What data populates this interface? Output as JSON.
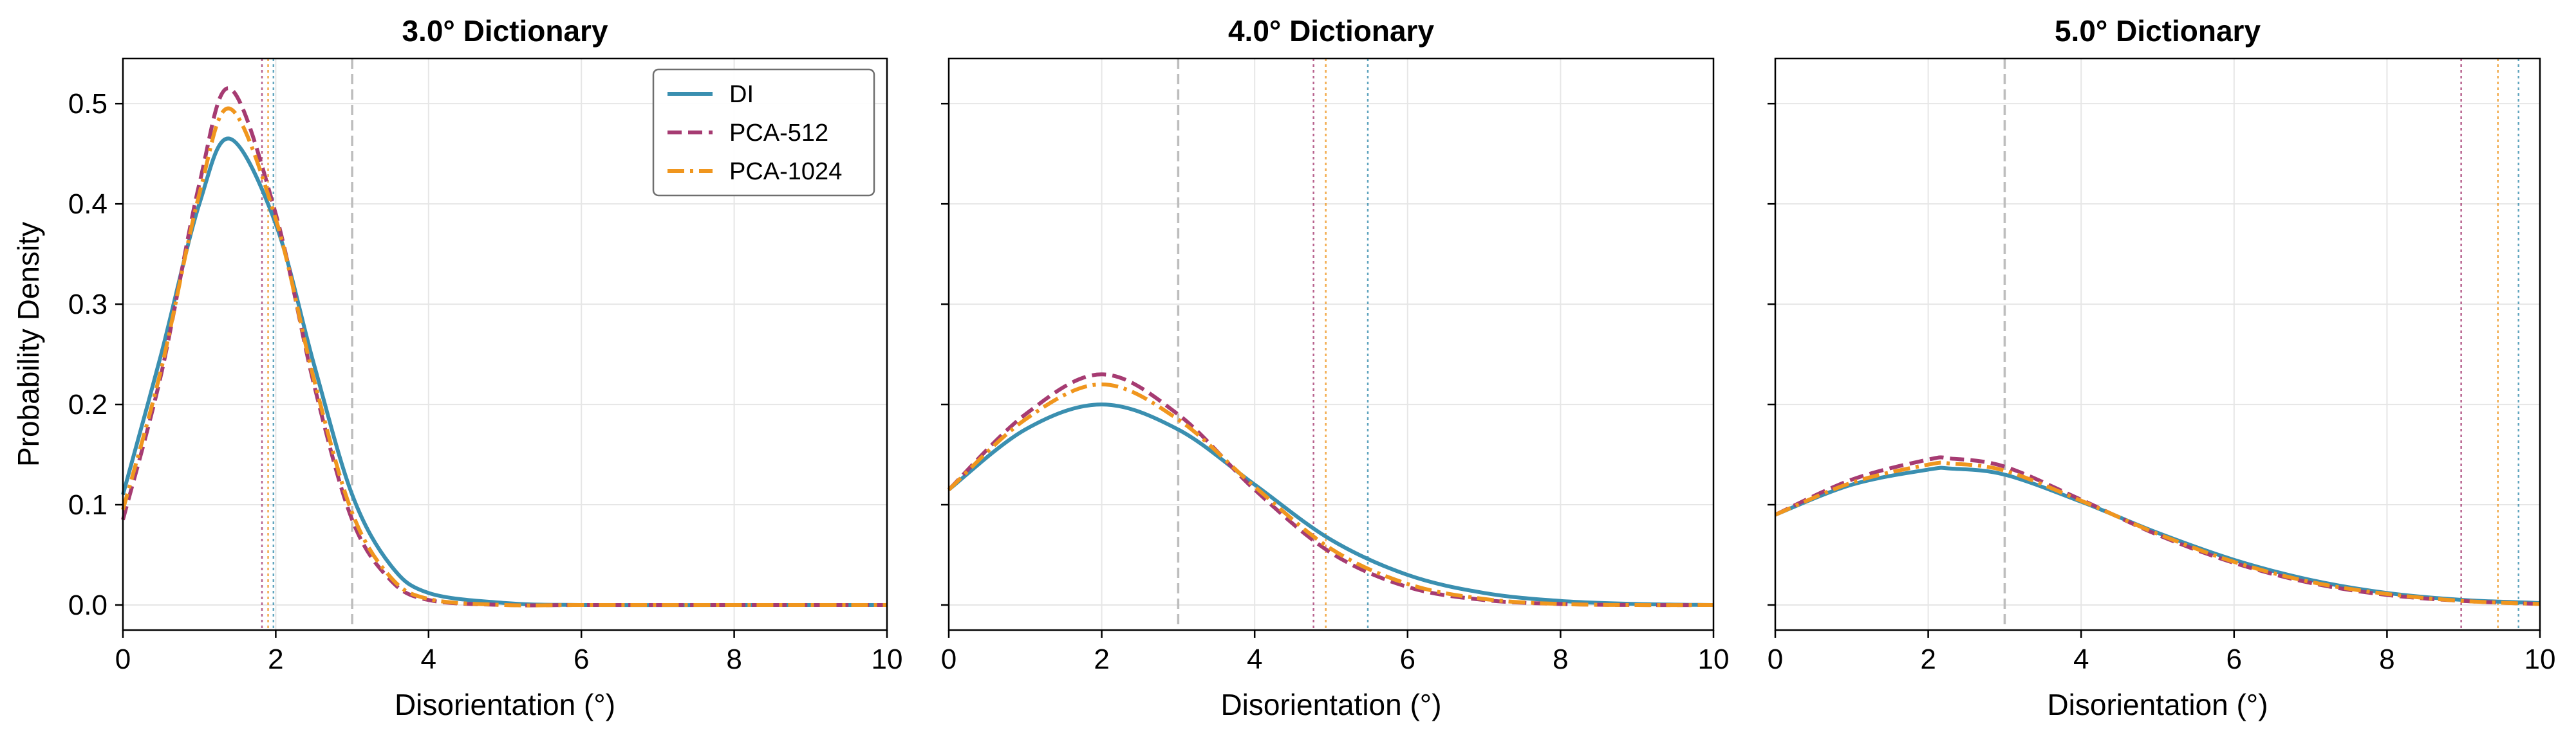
{
  "chart_data": [
    {
      "type": "line",
      "title": "3.0° Dictionary",
      "xlabel": "Disorientation (°)",
      "ylabel": "Probability Density",
      "xlim": [
        0,
        10
      ],
      "ylim": [
        -0.025,
        0.545
      ],
      "xticks": [
        "0",
        "2",
        "4",
        "6",
        "8",
        "10"
      ],
      "yticks": [
        "0.0",
        "0.1",
        "0.2",
        "0.3",
        "0.4",
        "0.5"
      ],
      "grid": true,
      "legend": "top-right",
      "series": [
        {
          "name": "DI",
          "color": "#3a8fb0",
          "dash": "solid",
          "x": [
            0,
            0.5,
            1.0,
            1.4,
            2.0,
            2.5,
            3.0,
            3.5,
            4.0,
            5.0,
            6.0,
            8.0,
            10.0
          ],
          "y": [
            0.11,
            0.25,
            0.4,
            0.465,
            0.38,
            0.24,
            0.11,
            0.04,
            0.012,
            0.002,
            0.0,
            0.0,
            0.0
          ],
          "mean": 1.97
        },
        {
          "name": "PCA-512",
          "color": "#a63b72",
          "dash": "dashed",
          "x": [
            0,
            0.5,
            1.0,
            1.4,
            2.0,
            2.5,
            3.0,
            3.5,
            4.0,
            5.0,
            6.0,
            8.0,
            10.0
          ],
          "y": [
            0.085,
            0.23,
            0.42,
            0.515,
            0.39,
            0.22,
            0.085,
            0.025,
            0.005,
            0.0,
            0.0,
            0.0,
            0.0
          ],
          "mean": 1.82
        },
        {
          "name": "PCA-1024",
          "color": "#f0961e",
          "dash": "dashdot",
          "x": [
            0,
            0.5,
            1.0,
            1.4,
            2.0,
            2.5,
            3.0,
            3.5,
            4.0,
            5.0,
            6.0,
            8.0,
            10.0
          ],
          "y": [
            0.095,
            0.235,
            0.41,
            0.495,
            0.385,
            0.225,
            0.092,
            0.028,
            0.006,
            0.0,
            0.0,
            0.0,
            0.0
          ],
          "mean": 1.9
        }
      ],
      "reference_line": 3.0
    },
    {
      "type": "line",
      "title": "4.0° Dictionary",
      "xlabel": "Disorientation (°)",
      "ylabel": "",
      "xlim": [
        0,
        10
      ],
      "ylim": [
        -0.025,
        0.545
      ],
      "xticks": [
        "0",
        "2",
        "4",
        "6",
        "8",
        "10"
      ],
      "yticks": [],
      "grid": true,
      "series": [
        {
          "name": "DI",
          "color": "#3a8fb0",
          "dash": "solid",
          "x": [
            0,
            1.0,
            2.0,
            3.0,
            4.0,
            5.0,
            6.0,
            7.0,
            8.0,
            9.0,
            10.0
          ],
          "y": [
            0.115,
            0.175,
            0.2,
            0.175,
            0.12,
            0.065,
            0.03,
            0.012,
            0.004,
            0.001,
            0.0
          ],
          "mean": 5.48
        },
        {
          "name": "PCA-512",
          "color": "#a63b72",
          "dash": "dashed",
          "x": [
            0,
            1.0,
            2.0,
            3.0,
            4.0,
            5.0,
            6.0,
            7.0,
            8.0,
            9.0,
            10.0
          ],
          "y": [
            0.115,
            0.19,
            0.23,
            0.19,
            0.115,
            0.052,
            0.018,
            0.005,
            0.001,
            0.0,
            0.0
          ],
          "mean": 4.77
        },
        {
          "name": "PCA-1024",
          "color": "#f0961e",
          "dash": "dashdot",
          "x": [
            0,
            1.0,
            2.0,
            3.0,
            4.0,
            5.0,
            6.0,
            7.0,
            8.0,
            9.0,
            10.0
          ],
          "y": [
            0.115,
            0.185,
            0.22,
            0.185,
            0.118,
            0.056,
            0.021,
            0.006,
            0.001,
            0.0,
            0.0
          ],
          "mean": 4.93
        }
      ],
      "reference_line": 3.0
    },
    {
      "type": "line",
      "title": "5.0° Dictionary",
      "xlabel": "Disorientation (°)",
      "ylabel": "",
      "xlim": [
        0,
        10
      ],
      "ylim": [
        -0.025,
        0.545
      ],
      "xticks": [
        "0",
        "2",
        "4",
        "6",
        "8",
        "10"
      ],
      "yticks": [],
      "grid": true,
      "series": [
        {
          "name": "DI",
          "color": "#3a8fb0",
          "dash": "solid",
          "x": [
            0,
            1.0,
            2.0,
            2.3,
            3.0,
            4.0,
            5.0,
            6.0,
            7.0,
            8.0,
            9.0,
            10.0
          ],
          "y": [
            0.09,
            0.12,
            0.135,
            0.136,
            0.13,
            0.103,
            0.072,
            0.045,
            0.025,
            0.012,
            0.005,
            0.002
          ],
          "mean": 9.72
        },
        {
          "name": "PCA-512",
          "color": "#a63b72",
          "dash": "dashed",
          "x": [
            0,
            1.0,
            2.0,
            2.3,
            3.0,
            4.0,
            5.0,
            6.0,
            7.0,
            8.0,
            9.0,
            10.0
          ],
          "y": [
            0.09,
            0.125,
            0.145,
            0.146,
            0.138,
            0.105,
            0.07,
            0.042,
            0.022,
            0.01,
            0.004,
            0.001
          ],
          "mean": 8.97
        },
        {
          "name": "PCA-1024",
          "color": "#f0961e",
          "dash": "dashdot",
          "x": [
            0,
            1.0,
            2.0,
            2.3,
            3.0,
            4.0,
            5.0,
            6.0,
            7.0,
            8.0,
            9.0,
            10.0
          ],
          "y": [
            0.09,
            0.122,
            0.14,
            0.141,
            0.134,
            0.104,
            0.071,
            0.043,
            0.023,
            0.011,
            0.004,
            0.001
          ],
          "mean": 9.45
        }
      ],
      "reference_line": 3.0
    }
  ],
  "colors": {
    "grid": "#e6e6e6",
    "reference_line": "#bdbdbd",
    "axes": "#000000"
  }
}
